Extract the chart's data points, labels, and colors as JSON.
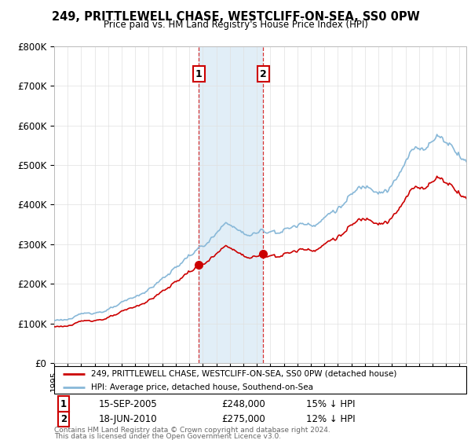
{
  "title": "249, PRITTLEWELL CHASE, WESTCLIFF-ON-SEA, SS0 0PW",
  "subtitle": "Price paid vs. HM Land Registry's House Price Index (HPI)",
  "ylim": [
    0,
    800000
  ],
  "yticks": [
    0,
    100000,
    200000,
    300000,
    400000,
    500000,
    600000,
    700000,
    800000
  ],
  "ytick_labels": [
    "£0",
    "£100K",
    "£200K",
    "£300K",
    "£400K",
    "£500K",
    "£600K",
    "£700K",
    "£800K"
  ],
  "hpi_color": "#88b8d8",
  "price_color": "#cc0000",
  "vline_color": "#cc0000",
  "shading_color": "#d5e8f5",
  "transaction1_date": 2005.71,
  "transaction1_price": 248000,
  "transaction1_label": "1",
  "transaction2_date": 2010.46,
  "transaction2_price": 275000,
  "transaction2_label": "2",
  "legend1_text": "249, PRITTLEWELL CHASE, WESTCLIFF-ON-SEA, SS0 0PW (detached house)",
  "legend2_text": "HPI: Average price, detached house, Southend-on-Sea",
  "table_row1": [
    "1",
    "15-SEP-2005",
    "£248,000",
    "15% ↓ HPI"
  ],
  "table_row2": [
    "2",
    "18-JUN-2010",
    "£275,000",
    "12% ↓ HPI"
  ],
  "footer1": "Contains HM Land Registry data © Crown copyright and database right 2024.",
  "footer2": "This data is licensed under the Open Government Licence v3.0.",
  "background_color": "#ffffff",
  "grid_color": "#e0e0e0",
  "xstart": 1995,
  "xend": 2025.5
}
